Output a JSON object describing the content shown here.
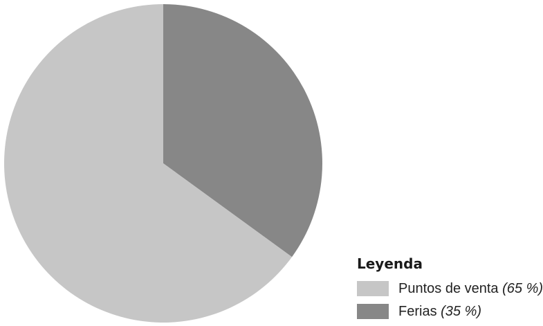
{
  "chart_data": {
    "type": "pie",
    "title": "",
    "legend_title": "Leyenda",
    "legend_placement": "bottom-right",
    "slices": [
      {
        "label": "Puntos de venta",
        "value": 65,
        "percent_label": "(65 %)",
        "color": "#c6c6c6"
      },
      {
        "label": "Ferias",
        "value": 35,
        "percent_label": "(35 %)",
        "color": "#878787"
      }
    ]
  }
}
